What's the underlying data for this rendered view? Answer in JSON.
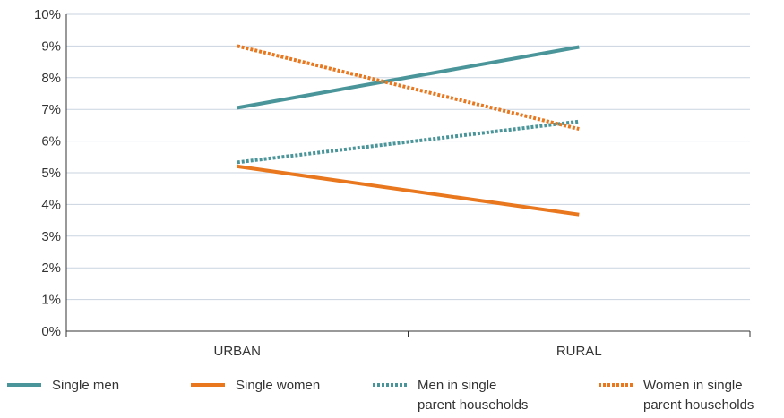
{
  "chart_data": {
    "type": "line",
    "title": "",
    "xlabel": "",
    "ylabel": "",
    "categories": [
      "URBAN",
      "RURAL"
    ],
    "ylim": [
      0,
      10
    ],
    "y_ticks": [
      "0%",
      "1%",
      "2%",
      "3%",
      "4%",
      "5%",
      "6%",
      "7%",
      "8%",
      "9%",
      "10%"
    ],
    "grid": true,
    "legend_position": "bottom",
    "series": [
      {
        "name": "Single men",
        "values": [
          7.05,
          8.97
        ],
        "color": "#4a9599",
        "style": "solid"
      },
      {
        "name": "Single women",
        "values": [
          5.2,
          3.68
        ],
        "color": "#e8771e",
        "style": "solid"
      },
      {
        "name": "Men in single parent households",
        "values": [
          5.33,
          6.62
        ],
        "color": "#4a9599",
        "style": "dotted"
      },
      {
        "name": "Women in single parent households",
        "values": [
          9.0,
          6.38
        ],
        "color": "#e8771e",
        "style": "dotted"
      }
    ],
    "legend": [
      {
        "lines": [
          "Single men"
        ]
      },
      {
        "lines": [
          "Single women"
        ]
      },
      {
        "lines": [
          "Men in single",
          "parent households"
        ]
      },
      {
        "lines": [
          "Women in single",
          "parent households"
        ]
      }
    ]
  },
  "colors": {
    "grid": "#c9d3e0",
    "axis": "#333333"
  }
}
